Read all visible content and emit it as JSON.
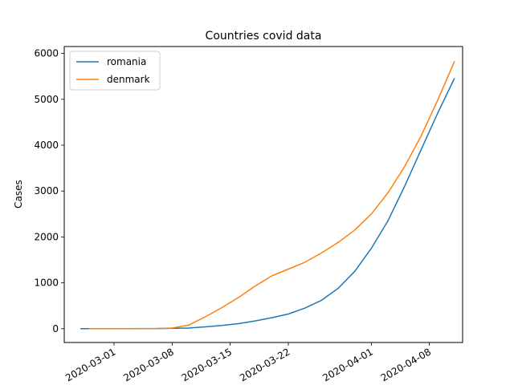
{
  "chart_data": {
    "type": "line",
    "title": "Countries covid data",
    "xlabel": "",
    "ylabel": "Cases",
    "legend_position": "top-left",
    "grid": false,
    "xlim": [
      "2020-02-24",
      "2020-04-12"
    ],
    "ylim": [
      -300,
      6150
    ],
    "x_ticks": [
      "2020-03-01",
      "2020-03-08",
      "2020-03-15",
      "2020-03-22",
      "2020-04-01",
      "2020-04-08"
    ],
    "y_ticks": [
      0,
      1000,
      2000,
      3000,
      4000,
      5000,
      6000
    ],
    "series": [
      {
        "name": "romania",
        "color": "#1f77b4",
        "points": [
          [
            "2020-02-26",
            1
          ],
          [
            "2020-03-01",
            3
          ],
          [
            "2020-03-06",
            4
          ],
          [
            "2020-03-08",
            7
          ],
          [
            "2020-03-10",
            15
          ],
          [
            "2020-03-12",
            40
          ],
          [
            "2020-03-14",
            70
          ],
          [
            "2020-03-16",
            110
          ],
          [
            "2020-03-18",
            170
          ],
          [
            "2020-03-20",
            240
          ],
          [
            "2020-03-22",
            320
          ],
          [
            "2020-03-24",
            450
          ],
          [
            "2020-03-26",
            620
          ],
          [
            "2020-03-28",
            880
          ],
          [
            "2020-03-30",
            1250
          ],
          [
            "2020-04-01",
            1750
          ],
          [
            "2020-04-03",
            2350
          ],
          [
            "2020-04-05",
            3100
          ],
          [
            "2020-04-07",
            3900
          ],
          [
            "2020-04-09",
            4700
          ],
          [
            "2020-04-11",
            5450
          ]
        ]
      },
      {
        "name": "denmark",
        "color": "#ff7f0e",
        "points": [
          [
            "2020-02-27",
            1
          ],
          [
            "2020-03-01",
            3
          ],
          [
            "2020-03-06",
            5
          ],
          [
            "2020-03-08",
            15
          ],
          [
            "2020-03-10",
            80
          ],
          [
            "2020-03-12",
            260
          ],
          [
            "2020-03-14",
            460
          ],
          [
            "2020-03-16",
            680
          ],
          [
            "2020-03-18",
            930
          ],
          [
            "2020-03-20",
            1150
          ],
          [
            "2020-03-22",
            1300
          ],
          [
            "2020-03-24",
            1450
          ],
          [
            "2020-03-26",
            1650
          ],
          [
            "2020-03-28",
            1880
          ],
          [
            "2020-03-30",
            2150
          ],
          [
            "2020-04-01",
            2500
          ],
          [
            "2020-04-03",
            2960
          ],
          [
            "2020-04-05",
            3530
          ],
          [
            "2020-04-07",
            4200
          ],
          [
            "2020-04-09",
            4980
          ],
          [
            "2020-04-11",
            5820
          ]
        ]
      }
    ]
  }
}
